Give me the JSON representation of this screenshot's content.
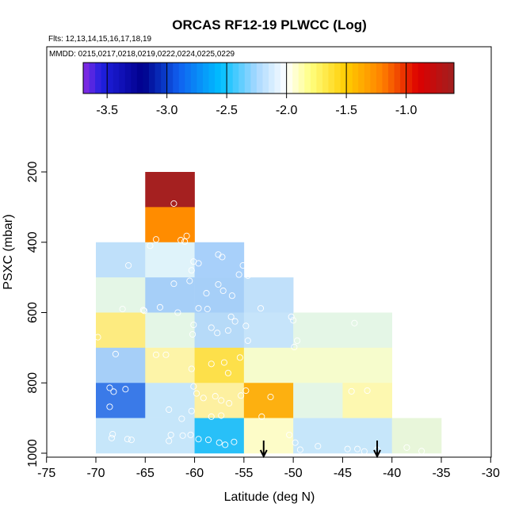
{
  "chart_data": {
    "type": "heatmap",
    "title": "ORCAS RF12-19 PLWCC (Log)",
    "subtitle_flights": "Flts: 12,13,14,15,16,17,18,19",
    "subtitle_dates": "MMDD: 0215,0217,0218,0219,0222,0224,0225,0229",
    "xlabel": "Latitude (deg N)",
    "ylabel": "PSXC (mbar)",
    "xlim": [
      -75,
      -30
    ],
    "ylim": [
      1000,
      0
    ],
    "x_ticks": [
      -75,
      -70,
      -65,
      -60,
      -55,
      -50,
      -45,
      -40,
      -35,
      -30
    ],
    "x_tick_labels": [
      "-75",
      "-70",
      "-65",
      "-60",
      "-55",
      "-50",
      "-45",
      "-40",
      "-35",
      "-30"
    ],
    "y_ticks": [
      200,
      400,
      600,
      800,
      1000
    ],
    "y_tick_labels": [
      "200",
      "400",
      "600",
      "800",
      "1000"
    ],
    "colorbar": {
      "range": [
        -3.7,
        -0.6
      ],
      "ticks": [
        -3.5,
        -3.0,
        -2.5,
        -2.0,
        -1.5,
        -1.0
      ],
      "tick_labels": [
        "-3.5",
        "-3.0",
        "-2.5",
        "-2.0",
        "-1.5",
        "-1.0"
      ],
      "stops": [
        {
          "v": -3.7,
          "c": "#8a2be2"
        },
        {
          "v": -3.55,
          "c": "#2020e0"
        },
        {
          "v": -3.2,
          "c": "#00008b"
        },
        {
          "v": -2.9,
          "c": "#1060f0"
        },
        {
          "v": -2.55,
          "c": "#00c0ff"
        },
        {
          "v": -2.25,
          "c": "#a8d8ff"
        },
        {
          "v": -2.0,
          "c": "#ffffff"
        },
        {
          "v": -1.8,
          "c": "#ffff80"
        },
        {
          "v": -1.5,
          "c": "#ffcc00"
        },
        {
          "v": -1.2,
          "c": "#ff8000"
        },
        {
          "v": -0.9,
          "c": "#dd0000"
        },
        {
          "v": -0.6,
          "c": "#a02020"
        }
      ]
    },
    "cells": [
      {
        "lat": [
          -65,
          -60
        ],
        "p": [
          200,
          300
        ],
        "color": "#a52020"
      },
      {
        "lat": [
          -65,
          -60
        ],
        "p": [
          300,
          400
        ],
        "color": "#ff8c00"
      },
      {
        "lat": [
          -70,
          -65
        ],
        "p": [
          400,
          500
        ],
        "color": "#bfe0fa"
      },
      {
        "lat": [
          -65,
          -60
        ],
        "p": [
          400,
          500
        ],
        "color": "#dff3fa"
      },
      {
        "lat": [
          -60,
          -55
        ],
        "p": [
          400,
          500
        ],
        "color": "#a8d0fa"
      },
      {
        "lat": [
          -70,
          -65
        ],
        "p": [
          500,
          600
        ],
        "color": "#e4f6e6"
      },
      {
        "lat": [
          -65,
          -60
        ],
        "p": [
          500,
          600
        ],
        "color": "#a6cff8"
      },
      {
        "lat": [
          -60,
          -55
        ],
        "p": [
          500,
          600
        ],
        "color": "#a6cff8"
      },
      {
        "lat": [
          -55,
          -50
        ],
        "p": [
          500,
          600
        ],
        "color": "#c0e0fa"
      },
      {
        "lat": [
          -70,
          -65
        ],
        "p": [
          600,
          700
        ],
        "color": "#fdeb80"
      },
      {
        "lat": [
          -65,
          -60
        ],
        "p": [
          600,
          700
        ],
        "color": "#e4f6e6"
      },
      {
        "lat": [
          -60,
          -55
        ],
        "p": [
          600,
          700
        ],
        "color": "#b6daf8"
      },
      {
        "lat": [
          -55,
          -50
        ],
        "p": [
          600,
          700
        ],
        "color": "#c6e4fa"
      },
      {
        "lat": [
          -50,
          -45
        ],
        "p": [
          600,
          700
        ],
        "color": "#e4f6e6"
      },
      {
        "lat": [
          -45,
          -40
        ],
        "p": [
          600,
          700
        ],
        "color": "#e4f6e6"
      },
      {
        "lat": [
          -70,
          -65
        ],
        "p": [
          700,
          800
        ],
        "color": "#a6cff8"
      },
      {
        "lat": [
          -65,
          -60
        ],
        "p": [
          700,
          800
        ],
        "color": "#fdf4a8"
      },
      {
        "lat": [
          -60,
          -55
        ],
        "p": [
          700,
          800
        ],
        "color": "#fde04a"
      },
      {
        "lat": [
          -55,
          -50
        ],
        "p": [
          700,
          800
        ],
        "color": "#f6fccc"
      },
      {
        "lat": [
          -50,
          -45
        ],
        "p": [
          700,
          800
        ],
        "color": "#f6fccc"
      },
      {
        "lat": [
          -45,
          -40
        ],
        "p": [
          700,
          800
        ],
        "color": "#f6fccc"
      },
      {
        "lat": [
          -70,
          -65
        ],
        "p": [
          800,
          900
        ],
        "color": "#3a7ae8"
      },
      {
        "lat": [
          -65,
          -60
        ],
        "p": [
          800,
          900
        ],
        "color": "#c6e6fa"
      },
      {
        "lat": [
          -60,
          -55
        ],
        "p": [
          800,
          900
        ],
        "color": "#fdf0a0"
      },
      {
        "lat": [
          -55,
          -50
        ],
        "p": [
          800,
          900
        ],
        "color": "#fdb010"
      },
      {
        "lat": [
          -50,
          -45
        ],
        "p": [
          800,
          900
        ],
        "color": "#e4f6e6"
      },
      {
        "lat": [
          -45,
          -40
        ],
        "p": [
          800,
          900
        ],
        "color": "#fdf8b0"
      },
      {
        "lat": [
          -70,
          -65
        ],
        "p": [
          900,
          1000
        ],
        "color": "#c6e6fa"
      },
      {
        "lat": [
          -65,
          -60
        ],
        "p": [
          900,
          1000
        ],
        "color": "#c6e6fa"
      },
      {
        "lat": [
          -60,
          -55
        ],
        "p": [
          900,
          1000
        ],
        "color": "#28c0f8"
      },
      {
        "lat": [
          -55,
          -50
        ],
        "p": [
          900,
          1000
        ],
        "color": "#fdfcc8"
      },
      {
        "lat": [
          -50,
          -45
        ],
        "p": [
          900,
          1000
        ],
        "color": "#c6e6fa"
      },
      {
        "lat": [
          -45,
          -40
        ],
        "p": [
          900,
          1000
        ],
        "color": "#c6e6fa"
      },
      {
        "lat": [
          -40,
          -35
        ],
        "p": [
          900,
          1000
        ],
        "color": "#e8f6da"
      }
    ],
    "points": [
      [
        -62.1,
        290
      ],
      [
        -63.9,
        392
      ],
      [
        -61.4,
        394
      ],
      [
        -60.8,
        382
      ],
      [
        -61.0,
        398
      ],
      [
        -64.5,
        410
      ],
      [
        -66.7,
        466
      ],
      [
        -62.1,
        518
      ],
      [
        -60.3,
        480
      ],
      [
        -60.1,
        455
      ],
      [
        -59.6,
        460
      ],
      [
        -57.6,
        435
      ],
      [
        -57.2,
        442
      ],
      [
        -55.1,
        466
      ],
      [
        -55.5,
        492
      ],
      [
        -54.6,
        495
      ],
      [
        -60.5,
        510
      ],
      [
        -57.6,
        520
      ],
      [
        -58.8,
        545
      ],
      [
        -57.1,
        538
      ],
      [
        -56.2,
        552
      ],
      [
        -63.5,
        585
      ],
      [
        -61.7,
        600
      ],
      [
        -59.6,
        588
      ],
      [
        -58.7,
        590
      ],
      [
        -56.3,
        612
      ],
      [
        -53.3,
        588
      ],
      [
        -50.2,
        612
      ],
      [
        -50.0,
        622
      ],
      [
        -67.3,
        590
      ],
      [
        -65.2,
        593
      ],
      [
        -65.1,
        595
      ],
      [
        -60.1,
        635
      ],
      [
        -60.2,
        662
      ],
      [
        -58.3,
        643
      ],
      [
        -57.7,
        658
      ],
      [
        -56.6,
        651
      ],
      [
        -54.8,
        638
      ],
      [
        -55.9,
        625
      ],
      [
        -54.6,
        680
      ],
      [
        -49.6,
        680
      ],
      [
        -49.9,
        698
      ],
      [
        -43.8,
        630
      ],
      [
        -69.8,
        670
      ],
      [
        -68.0,
        718
      ],
      [
        -63.9,
        720
      ],
      [
        -62.9,
        720
      ],
      [
        -60.3,
        760
      ],
      [
        -58.3,
        746
      ],
      [
        -57.0,
        742
      ],
      [
        -56.6,
        772
      ],
      [
        -55.4,
        728
      ],
      [
        -68.6,
        814
      ],
      [
        -68.2,
        825
      ],
      [
        -67.0,
        818
      ],
      [
        -68.6,
        868
      ],
      [
        -60.1,
        810
      ],
      [
        -59.8,
        830
      ],
      [
        -59.1,
        843
      ],
      [
        -57.9,
        838
      ],
      [
        -57.3,
        850
      ],
      [
        -56.5,
        858
      ],
      [
        -55.3,
        836
      ],
      [
        -54.8,
        822
      ],
      [
        -52.3,
        840
      ],
      [
        -53.2,
        896
      ],
      [
        -44.1,
        824
      ],
      [
        -42.5,
        822
      ],
      [
        -62.6,
        876
      ],
      [
        -61.3,
        902
      ],
      [
        -60.3,
        880
      ],
      [
        -58.3,
        896
      ],
      [
        -57.3,
        893
      ],
      [
        -68.4,
        957
      ],
      [
        -66.8,
        960
      ],
      [
        -66.4,
        962
      ],
      [
        -68.3,
        946
      ],
      [
        -62.6,
        965
      ],
      [
        -62.4,
        948
      ],
      [
        -61.2,
        950
      ],
      [
        -60.4,
        948
      ],
      [
        -59.6,
        960
      ],
      [
        -58.6,
        962
      ],
      [
        -57.5,
        970
      ],
      [
        -56.9,
        976
      ],
      [
        -56.0,
        968
      ],
      [
        -50.4,
        948
      ],
      [
        -49.8,
        970
      ],
      [
        -49.3,
        990
      ],
      [
        -47.5,
        980
      ],
      [
        -44.5,
        988
      ],
      [
        -43.5,
        988
      ],
      [
        -42.8,
        995
      ],
      [
        -41.5,
        990
      ],
      [
        -38.5,
        984
      ],
      [
        -37.0,
        994
      ]
    ],
    "arrows_lat": [
      -53.0,
      -41.5
    ]
  }
}
